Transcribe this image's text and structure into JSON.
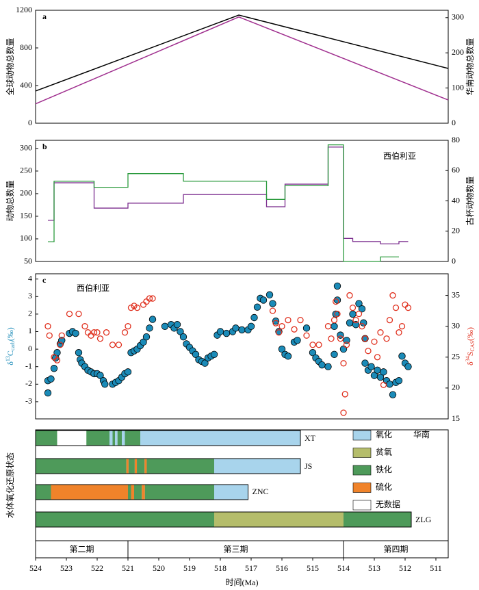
{
  "chart_data": [
    {
      "type": "line",
      "panel": "a",
      "ylabel": "全球动物总数量",
      "y2label": "华南动物总数量",
      "xlim": [
        524,
        510.6
      ],
      "ylim": [
        0,
        1200
      ],
      "yticks": [
        0,
        400,
        800,
        1200
      ],
      "y2lim": [
        0,
        321
      ],
      "y2ticks": [
        0,
        100,
        200,
        300
      ],
      "series": [
        {
          "color": "#000000",
          "x": [
            524,
            517.4,
            510.6
          ],
          "values": [
            342,
            1149,
            582
          ]
        },
        {
          "color": "#a0308f",
          "axis": "y2",
          "x": [
            524,
            517.4,
            510.6
          ],
          "values": [
            55,
            302,
            66
          ]
        }
      ]
    },
    {
      "type": "step",
      "panel": "b",
      "ylabel": "动物总数量",
      "y2label": "古杯动物数量",
      "annotation": "西伯利亚",
      "xlim": [
        524,
        510.6
      ],
      "ylim": [
        50,
        318
      ],
      "yticks": [
        50,
        100,
        150,
        200,
        250,
        300
      ],
      "y2lim": [
        0,
        80
      ],
      "y2ticks": [
        0,
        20,
        40,
        60,
        80
      ],
      "series": [
        {
          "color": "#7b2d8e",
          "bins": [
            523.6,
            523.4,
            522.1,
            521.0,
            519.2,
            516.5,
            515.9,
            514.5,
            514.0,
            513.7,
            512.8,
            512.2,
            511.9
          ],
          "values": [
            141,
            224,
            168,
            179,
            198,
            171,
            221,
            303,
            101,
            94,
            89,
            94
          ]
        },
        {
          "color": "#2a9a3c",
          "axis": "y2",
          "bins": [
            523.6,
            523.4,
            522.1,
            521.0,
            519.2,
            516.5,
            515.9,
            514.5,
            514.0,
            512.8,
            512.2
          ],
          "values": [
            13,
            53,
            49,
            58,
            53,
            41,
            50,
            77,
            0,
            3
          ]
        }
      ]
    },
    {
      "type": "scatter",
      "panel": "c",
      "annotation": "西伯利亚",
      "ylabel": [
        "δ",
        "13",
        "C",
        "carb",
        "(‰)"
      ],
      "y2label": [
        "δ",
        "34",
        "S",
        "CAS",
        "(‰)"
      ],
      "xlim": [
        524,
        510.6
      ],
      "ylim": [
        -3.98,
        4.3
      ],
      "yticks": [
        -3,
        -2,
        -1,
        0,
        1,
        2,
        3,
        4
      ],
      "y2lim": [
        15,
        38.5
      ],
      "y2ticks": [
        15,
        20,
        25,
        30,
        35
      ],
      "series": [
        {
          "color": "#1b8bb8",
          "x": [
            523.6,
            523.6,
            523.5,
            523.4,
            523.35,
            523.3,
            523.2,
            523.15,
            522.9,
            522.8,
            522.7,
            522.6,
            522.55,
            522.5,
            522.4,
            522.3,
            522.2,
            522.1,
            522.0,
            521.9,
            521.8,
            521.75,
            521.5,
            521.4,
            521.3,
            521.2,
            521.1,
            521.0,
            520.9,
            520.8,
            520.7,
            520.6,
            520.5,
            520.4,
            520.3,
            520.2,
            519.8,
            519.6,
            519.5,
            519.4,
            519.3,
            519.2,
            519.1,
            519.0,
            518.9,
            518.8,
            518.7,
            518.6,
            518.5,
            518.4,
            518.3,
            518.2,
            518.1,
            518.0,
            517.8,
            517.6,
            517.5,
            517.3,
            517.1,
            517.0,
            516.9,
            516.8,
            516.7,
            516.6,
            516.4,
            516.3,
            516.2,
            516.1,
            516.0,
            515.9,
            515.8,
            515.6,
            515.5,
            515.2,
            515.0,
            514.9,
            514.8,
            514.7,
            514.5,
            514.3,
            514.3,
            514.25,
            514.2,
            514.2,
            514.1,
            514.0,
            513.9,
            513.8,
            513.7,
            513.6,
            513.5,
            513.4,
            513.35,
            513.3,
            513.3,
            513.2,
            513.1,
            513.0,
            512.9,
            512.8,
            512.7,
            512.6,
            512.5,
            512.4,
            512.3,
            512.2,
            512.1,
            512.0,
            511.9
          ],
          "values": [
            -2.5,
            -1.8,
            -1.7,
            -1.1,
            -0.5,
            -0.2,
            0.3,
            0.5,
            0.9,
            1.0,
            0.9,
            -0.2,
            -0.6,
            -0.8,
            -1.0,
            -1.2,
            -1.3,
            -1.4,
            -1.4,
            -1.5,
            -1.8,
            -2.0,
            -2.0,
            -1.9,
            -1.8,
            -1.6,
            -1.4,
            -1.3,
            -0.2,
            -0.1,
            0.0,
            0.2,
            0.4,
            0.7,
            1.2,
            1.7,
            1.3,
            1.4,
            1.2,
            1.4,
            1.0,
            0.7,
            0.3,
            0.1,
            -0.1,
            -0.3,
            -0.6,
            -0.7,
            -0.8,
            -0.5,
            -0.4,
            -0.3,
            0.8,
            1.0,
            0.9,
            1.0,
            1.2,
            1.1,
            1.1,
            1.3,
            1.8,
            2.4,
            2.9,
            2.8,
            3.1,
            2.6,
            1.6,
            1.0,
            0.0,
            -0.3,
            -0.4,
            0.4,
            0.5,
            1.2,
            -0.2,
            -0.5,
            -0.7,
            -0.9,
            -1.0,
            -0.3,
            1.3,
            2.0,
            3.6,
            2.8,
            0.8,
            0.0,
            0.5,
            1.5,
            2.0,
            1.4,
            2.6,
            2.3,
            1.5,
            0.6,
            -0.8,
            -1.2,
            -1.0,
            -1.5,
            -1.2,
            -1.6,
            -1.3,
            -1.8,
            -2.0,
            -2.6,
            -1.9,
            -1.8,
            -0.4,
            -0.8,
            -1.0
          ]
        },
        {
          "color": "#e0301e",
          "axis": "y2",
          "x": [
            523.6,
            523.55,
            523.4,
            523.3,
            523.2,
            523.15,
            522.9,
            522.6,
            522.4,
            522.3,
            522.2,
            522.1,
            522.0,
            521.9,
            521.7,
            521.5,
            521.3,
            521.1,
            521.0,
            520.9,
            520.8,
            520.7,
            520.5,
            520.4,
            520.3,
            520.2,
            516.3,
            516.2,
            516.1,
            516.0,
            515.8,
            515.6,
            515.4,
            515.2,
            515.0,
            514.8,
            514.5,
            514.4,
            514.3,
            514.25,
            514.2,
            514.1,
            514.0,
            514.0,
            513.95,
            513.9,
            513.8,
            513.7,
            513.6,
            513.5,
            513.4,
            513.3,
            513.2,
            513.0,
            512.9,
            512.8,
            512.7,
            512.6,
            512.5,
            512.4,
            512.3,
            512.2,
            512.1,
            512.0,
            511.9
          ],
          "values": [
            30,
            28.5,
            25,
            24.5,
            27,
            28.5,
            32,
            32,
            30,
            29,
            28.5,
            29,
            29,
            28,
            29,
            27,
            27,
            29,
            30,
            33,
            33.3,
            33,
            33.5,
            34,
            34.5,
            34.5,
            32.5,
            30.5,
            29,
            30,
            31,
            29.5,
            31,
            28.5,
            27,
            27,
            30,
            28,
            31,
            34,
            32,
            28,
            24,
            16,
            19,
            27,
            35,
            33,
            31,
            32,
            30,
            28,
            26,
            27.5,
            25,
            29,
            20.5,
            28,
            31,
            35,
            33,
            29,
            30,
            33.5,
            33
          ]
        }
      ]
    },
    {
      "type": "timeline",
      "panel": "d",
      "ylabel": "水体氧化还原状态",
      "xlabel": "时间(Ma)",
      "region": "华南",
      "xlim": [
        524,
        510.6
      ],
      "xticks": [
        524,
        523,
        522,
        521,
        520,
        519,
        518,
        517,
        516,
        515,
        514,
        513,
        512,
        511
      ],
      "legend": [
        {
          "name": "氧化",
          "color": "#a8d4ec"
        },
        {
          "name": "贫氧",
          "color": "#b5bd6b"
        },
        {
          "name": "铁化",
          "color": "#4e9a5a"
        },
        {
          "name": "硫化",
          "color": "#f0832a"
        },
        {
          "name": "无数据",
          "color": "#ffffff"
        }
      ],
      "rows": [
        {
          "name": "XT",
          "segments": [
            {
              "start": 524,
              "end": 523.3,
              "state": "铁化"
            },
            {
              "start": 523.3,
              "end": 522.35,
              "state": "无数据"
            },
            {
              "start": 522.35,
              "end": 521.6,
              "state": "铁化"
            },
            {
              "start": 521.6,
              "end": 521.5,
              "state": "氧化"
            },
            {
              "start": 521.5,
              "end": 521.42,
              "state": "铁化"
            },
            {
              "start": 521.42,
              "end": 521.34,
              "state": "氧化"
            },
            {
              "start": 521.34,
              "end": 521.2,
              "state": "铁化"
            },
            {
              "start": 521.2,
              "end": 521.1,
              "state": "氧化"
            },
            {
              "start": 521.1,
              "end": 520.6,
              "state": "铁化"
            },
            {
              "start": 520.6,
              "end": 515.4,
              "state": "氧化"
            }
          ]
        },
        {
          "name": "JS",
          "segments": [
            {
              "start": 524,
              "end": 521.05,
              "state": "铁化"
            },
            {
              "start": 521.05,
              "end": 520.98,
              "state": "硫化"
            },
            {
              "start": 520.98,
              "end": 520.78,
              "state": "铁化"
            },
            {
              "start": 520.78,
              "end": 520.71,
              "state": "硫化"
            },
            {
              "start": 520.71,
              "end": 520.46,
              "state": "铁化"
            },
            {
              "start": 520.46,
              "end": 520.39,
              "state": "硫化"
            },
            {
              "start": 520.39,
              "end": 518.2,
              "state": "铁化"
            },
            {
              "start": 518.2,
              "end": 515.4,
              "state": "氧化"
            }
          ]
        },
        {
          "name": "ZNC",
          "segments": [
            {
              "start": 524,
              "end": 523.5,
              "state": "铁化"
            },
            {
              "start": 523.5,
              "end": 521.0,
              "state": "硫化"
            },
            {
              "start": 521.0,
              "end": 520.9,
              "state": "铁化"
            },
            {
              "start": 520.9,
              "end": 520.8,
              "state": "硫化"
            },
            {
              "start": 520.8,
              "end": 520.55,
              "state": "铁化"
            },
            {
              "start": 520.55,
              "end": 520.45,
              "state": "硫化"
            },
            {
              "start": 520.45,
              "end": 518.2,
              "state": "铁化"
            },
            {
              "start": 518.2,
              "end": 517.1,
              "state": "氧化"
            }
          ]
        },
        {
          "name": "ZLG",
          "segments": [
            {
              "start": 524,
              "end": 518.2,
              "state": "铁化"
            },
            {
              "start": 518.2,
              "end": 514.0,
              "state": "贫氧"
            },
            {
              "start": 514.0,
              "end": 511.8,
              "state": "铁化"
            }
          ]
        }
      ],
      "stages": [
        {
          "name": "第二期",
          "start": 524,
          "end": 521
        },
        {
          "name": "第三期",
          "start": 521,
          "end": 514
        },
        {
          "name": "第四期",
          "start": 514,
          "end": 510.6
        }
      ]
    }
  ]
}
